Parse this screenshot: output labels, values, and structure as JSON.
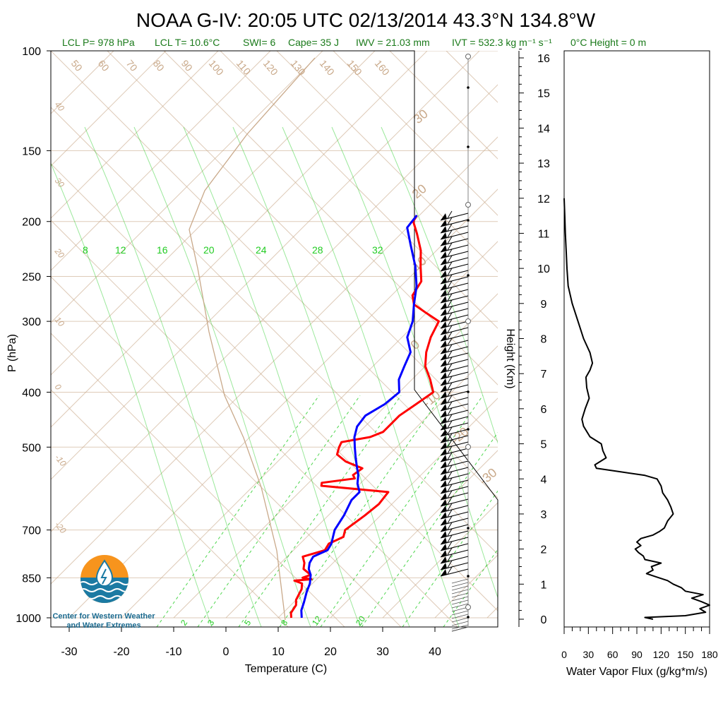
{
  "title": "NOAA G-IV: 20:05 UTC 02/13/2014  43.3°N 134.8°W",
  "subtitle": {
    "lcl_p": "LCL P= 978 hPa",
    "lcl_t": "LCL T= 10.6°C",
    "swi": "SWI= 6",
    "cape": "Cape= 35 J",
    "iwv": "IWV = 21.03 mm",
    "ivt": "IVT = 532.3 kg m⁻¹ s⁻¹",
    "zero_height": "0°C Height = 0 m"
  },
  "logo": {
    "line1": "Center for Western Weather",
    "line2": "and Water Extremes"
  },
  "colors": {
    "temperature": "#ff0000",
    "dewpoint": "#0000ff",
    "isotherm": "#c9a98a",
    "mixing_ratio": "#22cc22",
    "flux": "#000000"
  },
  "chart_data": [
    {
      "type": "line",
      "name": "skew-t",
      "xlabel": "Temperature (C)",
      "ylabel": "P (hPa)",
      "y_scale": "log",
      "xlim": [
        -34,
        52
      ],
      "ylim": [
        1000,
        100
      ],
      "x_ticks": [
        "-30",
        "-20",
        "-10",
        "0",
        "10",
        "20",
        "30",
        "40"
      ],
      "y_ticks": [
        "100",
        "150",
        "200",
        "250",
        "300",
        "400",
        "500",
        "700",
        "850",
        "1000"
      ],
      "isotherm_labels": [
        "50",
        "60",
        "70",
        "80",
        "90",
        "100",
        "110",
        "120",
        "130",
        "140",
        "150",
        "160"
      ],
      "theta_labels": [
        "40",
        "30",
        "20",
        "10",
        "0",
        "-10",
        "-20"
      ],
      "right_labels": [
        "30",
        "20",
        "10",
        "0",
        "-10",
        "-20",
        "-30"
      ],
      "mixing_ratio_top_labels": [
        "8",
        "12",
        "16",
        "20",
        "24",
        "28",
        "32"
      ],
      "mixing_ratio_bottom_labels": [
        "2",
        "3",
        "5",
        "8",
        "12",
        "20"
      ],
      "temperature_trace": {
        "values": [
          {
            "p": 1000,
            "t": 12.5
          },
          {
            "p": 980,
            "t": 11.5
          },
          {
            "p": 950,
            "t": 11
          },
          {
            "p": 930,
            "t": 10
          },
          {
            "p": 910,
            "t": 9.5
          },
          {
            "p": 890,
            "t": 9
          },
          {
            "p": 870,
            "t": 8
          },
          {
            "p": 860,
            "t": 6
          },
          {
            "p": 855,
            "t": 9
          },
          {
            "p": 850,
            "t": 7
          },
          {
            "p": 840,
            "t": 8
          },
          {
            "p": 820,
            "t": 5.5
          },
          {
            "p": 800,
            "t": 4.5
          },
          {
            "p": 780,
            "t": 3
          },
          {
            "p": 760,
            "t": 6
          },
          {
            "p": 740,
            "t": 5.5
          },
          {
            "p": 720,
            "t": 7
          },
          {
            "p": 700,
            "t": 6
          },
          {
            "p": 660,
            "t": 7
          },
          {
            "p": 630,
            "t": 7.5
          },
          {
            "p": 600,
            "t": 7
          },
          {
            "p": 585,
            "t": -7
          },
          {
            "p": 578,
            "t": -7.5
          },
          {
            "p": 568,
            "t": -2
          },
          {
            "p": 560,
            "t": -3
          },
          {
            "p": 545,
            "t": -2.5
          },
          {
            "p": 530,
            "t": -7
          },
          {
            "p": 515,
            "t": -10
          },
          {
            "p": 500,
            "t": -11
          },
          {
            "p": 490,
            "t": -11.5
          },
          {
            "p": 480,
            "t": -7
          },
          {
            "p": 470,
            "t": -5.5
          },
          {
            "p": 455,
            "t": -5.5
          },
          {
            "p": 440,
            "t": -5.5
          },
          {
            "p": 420,
            "t": -4.5
          },
          {
            "p": 400,
            "t": -3.5
          },
          {
            "p": 380,
            "t": -6.5
          },
          {
            "p": 360,
            "t": -10
          },
          {
            "p": 340,
            "t": -12.5
          },
          {
            "p": 320,
            "t": -14.5
          },
          {
            "p": 300,
            "t": -16
          },
          {
            "p": 290,
            "t": -20
          },
          {
            "p": 280,
            "t": -24
          },
          {
            "p": 270,
            "t": -26
          },
          {
            "p": 255,
            "t": -27
          },
          {
            "p": 240,
            "t": -30
          },
          {
            "p": 225,
            "t": -33
          },
          {
            "p": 210,
            "t": -37
          },
          {
            "p": 200,
            "t": -40
          },
          {
            "p": 195,
            "t": -40.5
          }
        ]
      },
      "dewpoint_trace": {
        "values": [
          {
            "p": 1000,
            "t": 14.5
          },
          {
            "p": 970,
            "t": 13
          },
          {
            "p": 940,
            "t": 12
          },
          {
            "p": 900,
            "t": 10.5
          },
          {
            "p": 870,
            "t": 9.5
          },
          {
            "p": 840,
            "t": 8
          },
          {
            "p": 820,
            "t": 6.5
          },
          {
            "p": 800,
            "t": 5.5
          },
          {
            "p": 780,
            "t": 5
          },
          {
            "p": 760,
            "t": 6.5
          },
          {
            "p": 740,
            "t": 6
          },
          {
            "p": 720,
            "t": 5
          },
          {
            "p": 700,
            "t": 4
          },
          {
            "p": 660,
            "t": 3
          },
          {
            "p": 620,
            "t": 1.5
          },
          {
            "p": 600,
            "t": 1.5
          },
          {
            "p": 580,
            "t": -0.5
          },
          {
            "p": 560,
            "t": -2
          },
          {
            "p": 540,
            "t": -4
          },
          {
            "p": 520,
            "t": -6
          },
          {
            "p": 500,
            "t": -8
          },
          {
            "p": 480,
            "t": -10
          },
          {
            "p": 460,
            "t": -11.5
          },
          {
            "p": 440,
            "t": -12
          },
          {
            "p": 420,
            "t": -10.5
          },
          {
            "p": 400,
            "t": -10
          },
          {
            "p": 380,
            "t": -12.5
          },
          {
            "p": 360,
            "t": -14
          },
          {
            "p": 340,
            "t": -15.5
          },
          {
            "p": 320,
            "t": -19
          },
          {
            "p": 300,
            "t": -21
          },
          {
            "p": 280,
            "t": -24
          },
          {
            "p": 260,
            "t": -27
          },
          {
            "p": 240,
            "t": -31
          },
          {
            "p": 220,
            "t": -36
          },
          {
            "p": 205,
            "t": -40
          },
          {
            "p": 195,
            "t": -40.5
          }
        ]
      },
      "wind_barbs": "present at right side (100–1000 hPa)"
    },
    {
      "type": "line",
      "name": "water-vapor-flux-profile",
      "xlabel": "Water Vapor Flux (g/kg*m/s)",
      "ylabel": "Height (Km)",
      "xlim": [
        0,
        180
      ],
      "ylim": [
        0,
        16.5
      ],
      "x_ticks": [
        "0",
        "30",
        "60",
        "90",
        "120",
        "150",
        "180"
      ],
      "y_ticks": [
        "0",
        "1",
        "2",
        "3",
        "4",
        "5",
        "6",
        "7",
        "8",
        "9",
        "10",
        "11",
        "12",
        "13",
        "14",
        "15",
        "16"
      ],
      "points": [
        {
          "z": 0.0,
          "v": 110
        },
        {
          "z": 0.05,
          "v": 100
        },
        {
          "z": 0.1,
          "v": 150
        },
        {
          "z": 0.2,
          "v": 175
        },
        {
          "z": 0.3,
          "v": 168
        },
        {
          "z": 0.4,
          "v": 180
        },
        {
          "z": 0.5,
          "v": 170
        },
        {
          "z": 0.6,
          "v": 158
        },
        {
          "z": 0.7,
          "v": 172
        },
        {
          "z": 0.8,
          "v": 150
        },
        {
          "z": 0.9,
          "v": 145
        },
        {
          "z": 1.0,
          "v": 135
        },
        {
          "z": 1.1,
          "v": 128
        },
        {
          "z": 1.2,
          "v": 115
        },
        {
          "z": 1.3,
          "v": 102
        },
        {
          "z": 1.4,
          "v": 110
        },
        {
          "z": 1.5,
          "v": 108
        },
        {
          "z": 1.6,
          "v": 120
        },
        {
          "z": 1.7,
          "v": 100
        },
        {
          "z": 1.8,
          "v": 98
        },
        {
          "z": 1.9,
          "v": 92
        },
        {
          "z": 2.0,
          "v": 88
        },
        {
          "z": 2.1,
          "v": 95
        },
        {
          "z": 2.2,
          "v": 90
        },
        {
          "z": 2.3,
          "v": 95
        },
        {
          "z": 2.4,
          "v": 110
        },
        {
          "z": 2.5,
          "v": 118
        },
        {
          "z": 2.6,
          "v": 124
        },
        {
          "z": 2.8,
          "v": 128
        },
        {
          "z": 3.0,
          "v": 135
        },
        {
          "z": 3.2,
          "v": 132
        },
        {
          "z": 3.4,
          "v": 128
        },
        {
          "z": 3.6,
          "v": 122
        },
        {
          "z": 3.8,
          "v": 120
        },
        {
          "z": 4.0,
          "v": 115
        },
        {
          "z": 4.1,
          "v": 100
        },
        {
          "z": 4.2,
          "v": 70
        },
        {
          "z": 4.3,
          "v": 40
        },
        {
          "z": 4.4,
          "v": 38
        },
        {
          "z": 4.5,
          "v": 45
        },
        {
          "z": 4.6,
          "v": 52
        },
        {
          "z": 4.8,
          "v": 48
        },
        {
          "z": 5.0,
          "v": 46
        },
        {
          "z": 5.2,
          "v": 32
        },
        {
          "z": 5.5,
          "v": 24
        },
        {
          "z": 5.7,
          "v": 22
        },
        {
          "z": 6.0,
          "v": 26
        },
        {
          "z": 6.3,
          "v": 31
        },
        {
          "z": 6.6,
          "v": 28
        },
        {
          "z": 6.9,
          "v": 27
        },
        {
          "z": 7.1,
          "v": 32
        },
        {
          "z": 7.3,
          "v": 35
        },
        {
          "z": 7.6,
          "v": 32
        },
        {
          "z": 8.0,
          "v": 24
        },
        {
          "z": 8.5,
          "v": 17
        },
        {
          "z": 9.0,
          "v": 10
        },
        {
          "z": 9.5,
          "v": 5
        },
        {
          "z": 10.0,
          "v": 3.5
        },
        {
          "z": 10.5,
          "v": 2.5
        },
        {
          "z": 11.0,
          "v": 1.5
        },
        {
          "z": 11.5,
          "v": 0.8
        },
        {
          "z": 12.0,
          "v": 0
        }
      ]
    }
  ]
}
